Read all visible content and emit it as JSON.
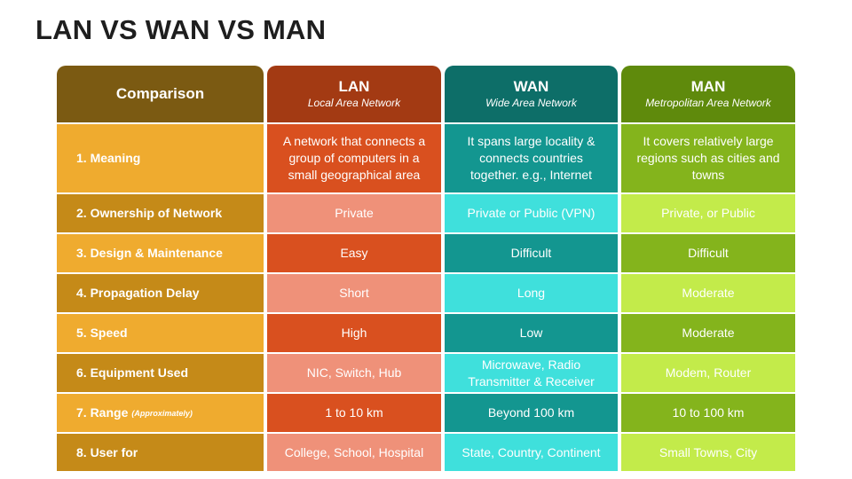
{
  "title": "LAN VS WAN VS MAN",
  "header": {
    "comparison": "Comparison",
    "lan": {
      "name": "LAN",
      "full": "Local Area Network"
    },
    "wan": {
      "name": "WAN",
      "full": "Wide Area Network"
    },
    "man": {
      "name": "MAN",
      "full": "Metropolitan Area Network"
    }
  },
  "rows": [
    {
      "label": "1. Meaning",
      "lan": "A network that connects a group of computers in a small geographical area",
      "wan": "It spans large locality & connects countries together. e.g., Internet",
      "man": "It covers relatively large regions such as cities and towns"
    },
    {
      "label": "2. Ownership of Network",
      "lan": "Private",
      "wan": "Private or Public (VPN)",
      "man": "Private, or Public"
    },
    {
      "label": "3. Design & Maintenance",
      "lan": "Easy",
      "wan": "Difficult",
      "man": "Difficult"
    },
    {
      "label": "4. Propagation Delay",
      "lan": "Short",
      "wan": "Long",
      "man": "Moderate"
    },
    {
      "label": "5. Speed",
      "lan": "High",
      "wan": "Low",
      "man": "Moderate"
    },
    {
      "label": "6. Equipment Used",
      "lan": "NIC, Switch, Hub",
      "wan": "Microwave, Radio Transmitter & Receiver",
      "man": "Modem, Router"
    },
    {
      "label": "7. Range",
      "label_note": "(Approximately)",
      "lan": "1 to 10 km",
      "wan": "Beyond 100 km",
      "man": "10 to 100 km"
    },
    {
      "label": "8. User for",
      "lan": "College, School, Hospital",
      "wan": "State, Country, Continent",
      "man": "Small Towns, City"
    }
  ],
  "colors": {
    "comparison_header": "#7b5a12",
    "label_light": "#efab2f",
    "label_dark": "#c58a18",
    "lan_header": "#a33a13",
    "lan_dark": "#d9501f",
    "lan_light": "#ef9179",
    "wan_header": "#0d6e68",
    "wan_dark": "#139690",
    "wan_light": "#3fe0dc",
    "man_header": "#5f8a0c",
    "man_dark": "#84b41c",
    "man_light": "#c3eb4a"
  }
}
